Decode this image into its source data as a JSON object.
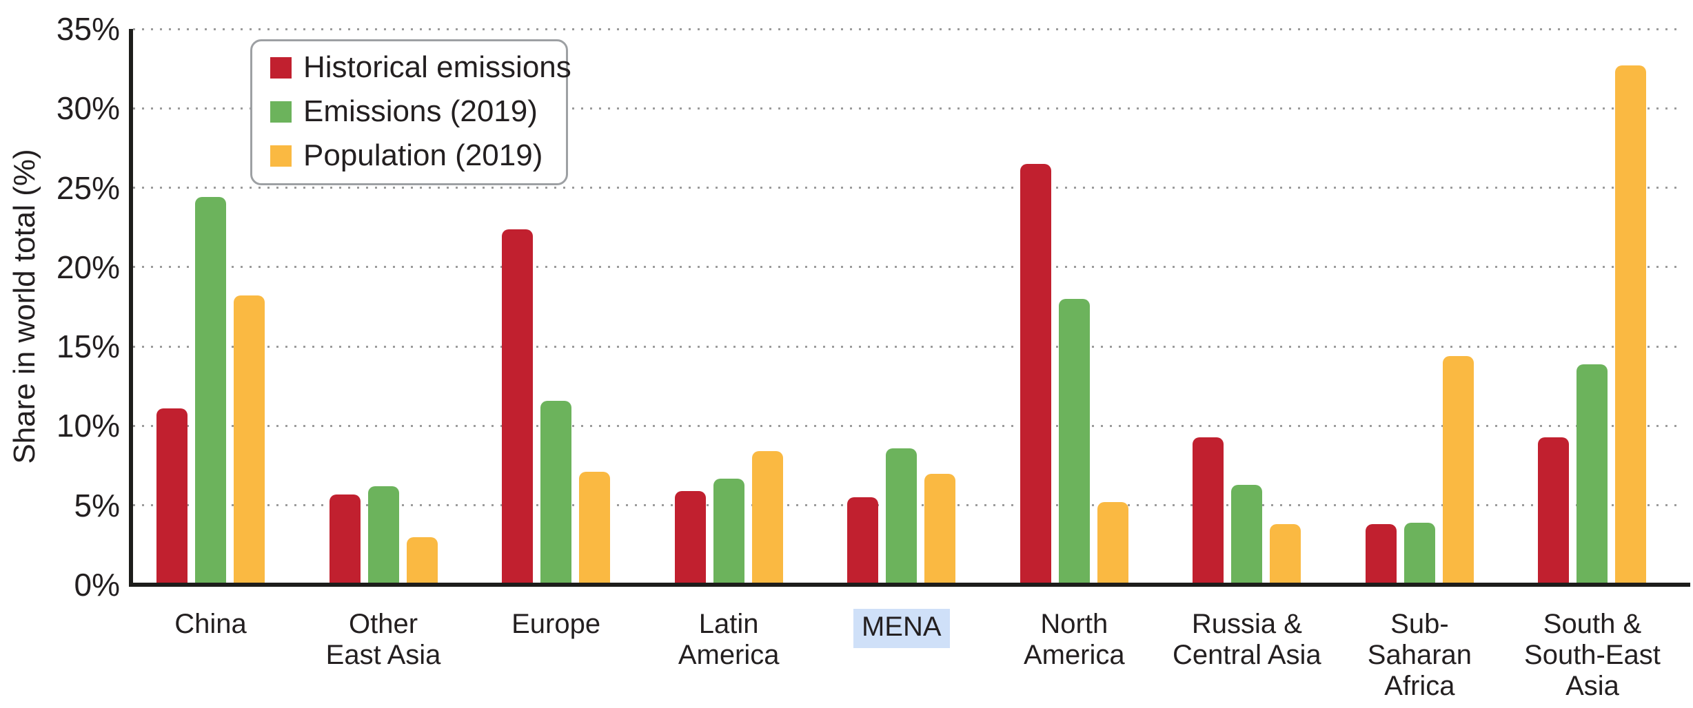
{
  "figure": {
    "colors": {
      "background": "#ffffff",
      "text": "#231f20",
      "gridline": "#9b9b9b",
      "axis": "#1d1d1b",
      "category_highlight": "#cfe0f8",
      "legend_border": "#9da0a3"
    }
  },
  "y_axis": {
    "title": "Share in world total (%)",
    "ticks": [
      "0%",
      "5%",
      "10%",
      "15%",
      "20%",
      "25%",
      "30%",
      "35%"
    ]
  },
  "legend": {
    "items": [
      "Historical emissions",
      "Emissions (2019)",
      "Population (2019)"
    ]
  },
  "chart_data": {
    "type": "bar",
    "title": "",
    "xlabel": "",
    "ylabel": "Share in world total (%)",
    "unit": "%",
    "ylim": [
      0,
      35
    ],
    "ytick_interval": 5,
    "grid": "horizontal-dotted",
    "legend_position": "top-left-inside",
    "categories": [
      "China",
      "Other East Asia",
      "Europe",
      "Latin America",
      "MENA",
      "North America",
      "Russia & Central Asia",
      "Sub-Saharan Africa",
      "South & South-East Asia"
    ],
    "category_label_lines": [
      [
        "China"
      ],
      [
        "Other",
        "East Asia"
      ],
      [
        "Europe"
      ],
      [
        "Latin",
        "America"
      ],
      [
        "MENA"
      ],
      [
        "North",
        "America"
      ],
      [
        "Russia &",
        "Central Asia"
      ],
      [
        "Sub-",
        "Saharan",
        "Africa"
      ],
      [
        "South &",
        "South-East",
        "Asia"
      ]
    ],
    "highlighted_category": "MENA",
    "series": [
      {
        "name": "Historical emissions",
        "color": "#c1202f",
        "values": [
          11.1,
          5.7,
          22.4,
          5.9,
          5.5,
          26.5,
          9.3,
          3.8,
          9.3
        ]
      },
      {
        "name": "Emissions (2019)",
        "color": "#6cb35c",
        "values": [
          24.4,
          6.2,
          11.6,
          6.7,
          8.6,
          18.0,
          6.3,
          3.9,
          13.9
        ]
      },
      {
        "name": "Population (2019)",
        "color": "#fab942",
        "values": [
          18.2,
          3.0,
          7.1,
          8.4,
          7.0,
          5.2,
          3.8,
          14.4,
          32.7
        ]
      }
    ]
  }
}
